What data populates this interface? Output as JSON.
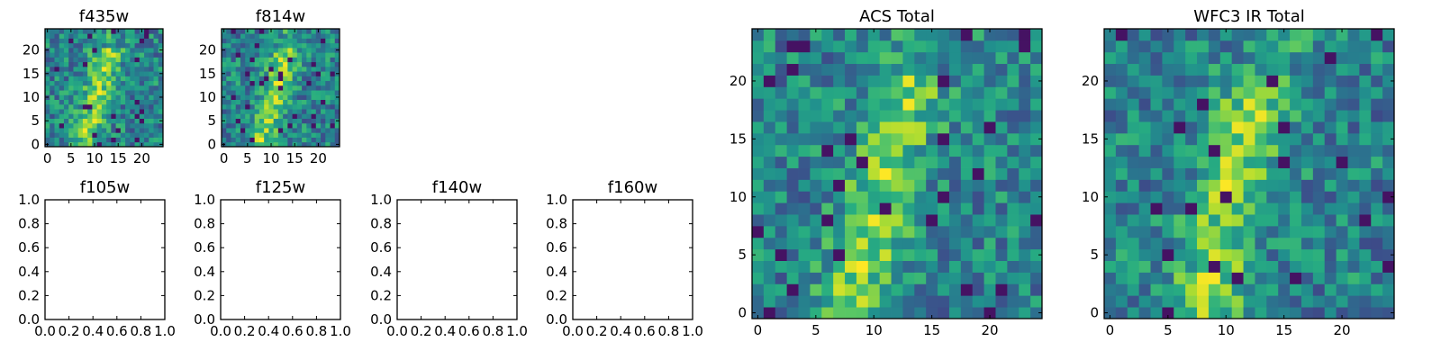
{
  "chart_data": [
    {
      "type": "heatmap",
      "title": "f435w",
      "xticks": [
        "0",
        "5",
        "10",
        "15",
        "20"
      ],
      "yticks": [
        "0",
        "5",
        "10",
        "15",
        "20"
      ],
      "xlim": [
        -0.5,
        24.5
      ],
      "ylim": [
        -0.5,
        24.5
      ],
      "grid": false,
      "colormap": "viridis",
      "seed": 11
    },
    {
      "type": "heatmap",
      "title": "f814w",
      "xticks": [
        "0",
        "5",
        "10",
        "15",
        "20"
      ],
      "yticks": [
        "0",
        "5",
        "10",
        "15",
        "20"
      ],
      "xlim": [
        -0.5,
        24.5
      ],
      "ylim": [
        -0.5,
        24.5
      ],
      "grid": false,
      "colormap": "viridis",
      "seed": 23
    },
    {
      "type": "empty",
      "title": "f105w",
      "xticks": [
        "0.0",
        "0.2",
        "0.4",
        "0.6",
        "0.8",
        "1.0"
      ],
      "yticks": [
        "0.0",
        "0.2",
        "0.4",
        "0.6",
        "0.8",
        "1.0"
      ],
      "xlim": [
        0,
        1
      ],
      "ylim": [
        0,
        1
      ]
    },
    {
      "type": "empty",
      "title": "f125w",
      "xticks": [
        "0.0",
        "0.2",
        "0.4",
        "0.6",
        "0.8",
        "1.0"
      ],
      "yticks": [
        "0.0",
        "0.2",
        "0.4",
        "0.6",
        "0.8",
        "1.0"
      ],
      "xlim": [
        0,
        1
      ],
      "ylim": [
        0,
        1
      ]
    },
    {
      "type": "empty",
      "title": "f140w",
      "xticks": [
        "0.0",
        "0.2",
        "0.4",
        "0.6",
        "0.8",
        "1.0"
      ],
      "yticks": [
        "0.0",
        "0.2",
        "0.4",
        "0.6",
        "0.8",
        "1.0"
      ],
      "xlim": [
        0,
        1
      ],
      "ylim": [
        0,
        1
      ]
    },
    {
      "type": "empty",
      "title": "f160w",
      "xticks": [
        "0.0",
        "0.2",
        "0.4",
        "0.6",
        "0.8",
        "1.0"
      ],
      "yticks": [
        "0.0",
        "0.2",
        "0.4",
        "0.6",
        "0.8",
        "1.0"
      ],
      "xlim": [
        0,
        1
      ],
      "ylim": [
        0,
        1
      ]
    },
    {
      "type": "heatmap",
      "title": "ACS Total",
      "xticks": [
        "0",
        "5",
        "10",
        "15",
        "20"
      ],
      "yticks": [
        "0",
        "5",
        "10",
        "15",
        "20"
      ],
      "xlim": [
        -0.5,
        24.5
      ],
      "ylim": [
        -0.5,
        24.5
      ],
      "grid": false,
      "colormap": "viridis",
      "seed": 37
    },
    {
      "type": "heatmap",
      "title": "WFC3 IR Total",
      "xticks": [
        "0",
        "5",
        "10",
        "15",
        "20"
      ],
      "yticks": [
        "0",
        "5",
        "10",
        "15",
        "20"
      ],
      "xlim": [
        -0.5,
        24.5
      ],
      "ylim": [
        -0.5,
        24.5
      ],
      "grid": false,
      "colormap": "viridis",
      "seed": 53
    }
  ]
}
